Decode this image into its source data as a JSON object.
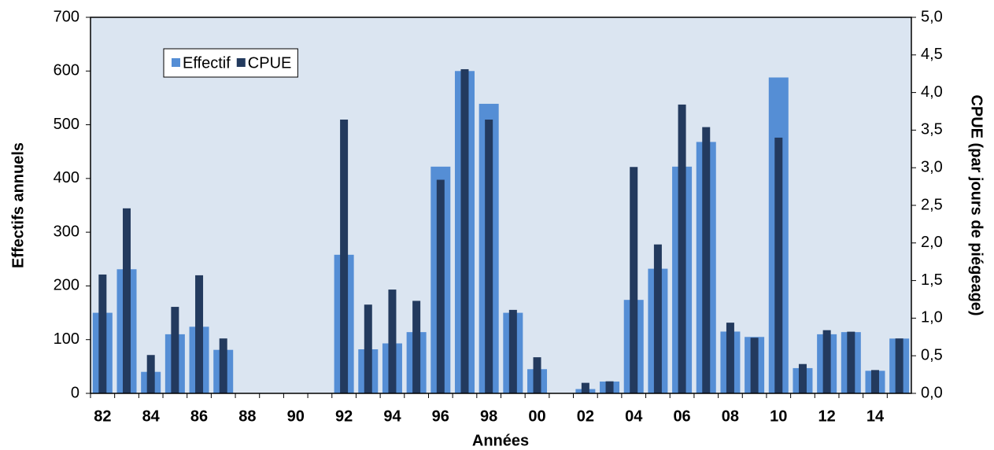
{
  "chart_data": {
    "type": "bar",
    "ylabel": "Effectifs annuels",
    "y2label": "CPUE   (par jours de piégeage)",
    "xlabel": "Années",
    "categories": [
      "82",
      null,
      "84",
      null,
      "86",
      null,
      "88",
      null,
      "90",
      null,
      "92",
      null,
      "94",
      null,
      "96",
      null,
      "98",
      null,
      "00",
      null,
      "02",
      null,
      "04",
      null,
      "06",
      null,
      "08",
      null,
      "10",
      null,
      "12",
      null,
      "14",
      null
    ],
    "series": [
      {
        "name": "Effectif",
        "color": "#558ed5",
        "values": [
          150,
          231,
          40,
          110,
          124,
          81,
          0,
          0,
          0,
          0,
          258,
          82,
          93,
          114,
          422,
          600,
          539,
          150,
          45,
          0,
          8,
          22,
          174,
          232,
          422,
          468,
          115,
          105,
          588,
          47,
          110,
          114,
          42,
          102
        ]
      },
      {
        "name": "CPUE",
        "color": "#233a5e",
        "axis": "y2",
        "values": [
          1.58,
          2.46,
          0.51,
          1.15,
          1.57,
          0.73,
          0,
          0,
          0,
          0,
          3.64,
          1.18,
          1.38,
          1.23,
          2.84,
          4.31,
          3.64,
          1.11,
          0.48,
          0,
          0.14,
          0.16,
          3.01,
          1.98,
          3.84,
          3.54,
          0.94,
          0.74,
          3.4,
          0.39,
          0.84,
          0.82,
          0.31,
          0.73
        ]
      }
    ],
    "ylim": [
      0,
      700
    ],
    "yticks": [
      0,
      100,
      200,
      300,
      400,
      500,
      600,
      700
    ],
    "y2lim": [
      0,
      5
    ],
    "y2ticks": [
      {
        "value": 0,
        "label": "0,0"
      },
      {
        "value": 0.5,
        "label": "0,5"
      },
      {
        "value": 1,
        "label": "1,0"
      },
      {
        "value": 1.5,
        "label": "1,5"
      },
      {
        "value": 2,
        "label": "2,0"
      },
      {
        "value": 2.5,
        "label": "2,5"
      },
      {
        "value": 3,
        "label": "3,0"
      },
      {
        "value": 3.5,
        "label": "3,5"
      },
      {
        "value": 4,
        "label": "4,0"
      },
      {
        "value": 4.5,
        "label": "4,5"
      },
      {
        "value": 5,
        "label": "5,0"
      }
    ],
    "legend": "upper left",
    "plot_background": "#dbe5f1"
  }
}
